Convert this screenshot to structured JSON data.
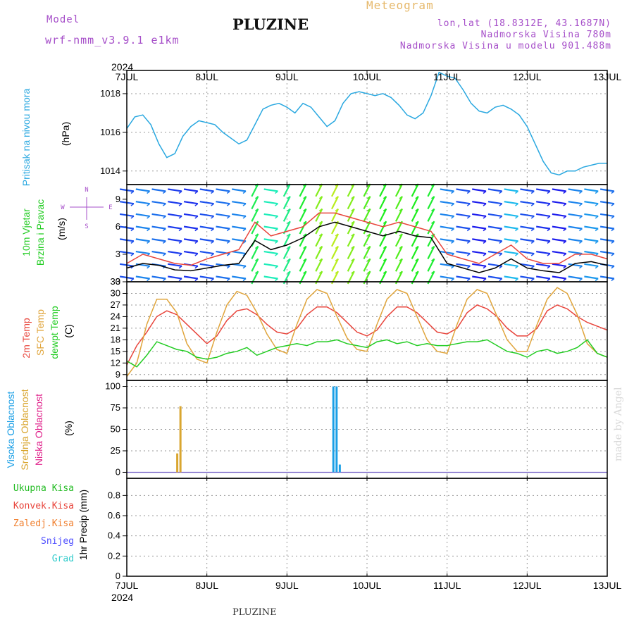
{
  "header": {
    "model_label": "Model",
    "model_run": "wrf-nmm_v3.9.1  e1km",
    "station": "PLUZINE",
    "product": "Meteogram",
    "lonlat": "lon,lat (18.8312E, 43.1687N)",
    "elevation": "Nadmorska Visina 780m",
    "model_elevation": "Nadmorska Visina u modelu 901.488m",
    "footer_station": "PLUZINE",
    "credit": "made by Angel"
  },
  "colors": {
    "pressure": "#2aa8e0",
    "temp2m": "#e8453c",
    "sfc_temp": "#e0a53c",
    "dewpt": "#22cc22",
    "high_cloud": "#1a9fe6",
    "mid_cloud": "#d9a630",
    "low_cloud": "#e0208a",
    "total_precip": "#22bb22",
    "conv_precip": "#e8453c",
    "frozen_precip": "#f08030",
    "snow": "#5050ff",
    "hail": "#33cccc"
  },
  "chart_data": [
    {
      "type": "line",
      "name": "sea-level pressure",
      "ylabel_lines": [
        "Pritisak na nivou mora",
        "(hPa)"
      ],
      "year": "2024",
      "x_ticks": [
        "7JUL",
        "8JUL",
        "9JUL",
        "10JUL",
        "11JUL",
        "12JUL",
        "13JUL"
      ],
      "xlim": [
        0,
        6
      ],
      "ylim": [
        1013.3,
        1019.2
      ],
      "y_ticks": [
        1014,
        1016,
        1018
      ],
      "x_days": [
        0,
        0.1,
        0.2,
        0.3,
        0.4,
        0.5,
        0.6,
        0.7,
        0.8,
        0.9,
        1.0,
        1.1,
        1.2,
        1.3,
        1.4,
        1.5,
        1.6,
        1.7,
        1.8,
        1.9,
        2.0,
        2.1,
        2.2,
        2.3,
        2.4,
        2.5,
        2.6,
        2.7,
        2.8,
        2.9,
        3.0,
        3.1,
        3.2,
        3.3,
        3.4,
        3.5,
        3.6,
        3.7,
        3.8,
        3.9,
        4.0,
        4.1,
        4.2,
        4.3,
        4.4,
        4.5,
        4.6,
        4.7,
        4.8,
        4.9,
        5.0,
        5.1,
        5.2,
        5.3,
        5.4,
        5.5,
        5.6,
        5.7,
        5.8,
        5.9,
        6.0
      ],
      "values": [
        1016.2,
        1016.8,
        1016.9,
        1016.4,
        1015.4,
        1014.7,
        1014.9,
        1015.8,
        1016.3,
        1016.6,
        1016.5,
        1016.4,
        1016.0,
        1015.7,
        1015.4,
        1015.6,
        1016.4,
        1017.2,
        1017.4,
        1017.5,
        1017.3,
        1017.0,
        1017.5,
        1017.3,
        1016.8,
        1016.3,
        1016.6,
        1017.5,
        1018.0,
        1018.1,
        1018.0,
        1017.9,
        1018.0,
        1017.8,
        1017.4,
        1016.9,
        1016.7,
        1017.0,
        1017.9,
        1019.1,
        1018.9,
        1018.8,
        1018.2,
        1017.5,
        1017.1,
        1017.0,
        1017.3,
        1017.4,
        1017.2,
        1016.9,
        1016.3,
        1015.4,
        1014.5,
        1013.9,
        1013.8,
        1014.0,
        1014.0,
        1014.2,
        1014.3,
        1014.4,
        1014.4
      ]
    },
    {
      "type": "line",
      "name": "10m wind",
      "ylabel_lines": [
        "10m Vjetar",
        "Brzina i Pravac",
        "(m/s)"
      ],
      "compass": [
        "N",
        "W",
        "E",
        "S"
      ],
      "ylim": [
        0,
        10.6
      ],
      "y_ticks": [
        0,
        3,
        6,
        9
      ],
      "x_days": [
        0,
        0.2,
        0.4,
        0.6,
        0.8,
        1.0,
        1.2,
        1.4,
        1.6,
        1.8,
        2.0,
        2.2,
        2.4,
        2.6,
        2.8,
        3.0,
        3.2,
        3.4,
        3.6,
        3.8,
        4.0,
        4.2,
        4.4,
        4.6,
        4.8,
        5.0,
        5.2,
        5.4,
        5.6,
        5.8,
        6.0
      ],
      "speed": [
        1.5,
        2.0,
        1.8,
        1.3,
        1.2,
        1.5,
        1.8,
        2.0,
        4.5,
        3.5,
        4.0,
        4.8,
        6.0,
        6.5,
        6.0,
        5.5,
        5.0,
        5.5,
        5.0,
        4.8,
        2.0,
        1.5,
        1.0,
        1.5,
        2.5,
        1.5,
        1.2,
        1.0,
        2.0,
        2.2,
        1.8
      ],
      "gust": [
        2.0,
        3.0,
        2.5,
        2.0,
        1.8,
        2.5,
        3.0,
        3.5,
        6.5,
        5.0,
        5.5,
        6.0,
        7.5,
        7.5,
        7.0,
        6.5,
        6.0,
        6.5,
        6.0,
        5.5,
        3.0,
        2.5,
        2.0,
        3.0,
        4.0,
        2.5,
        2.0,
        2.0,
        3.0,
        3.0,
        2.5
      ]
    },
    {
      "type": "line",
      "name": "temperature",
      "ylabel_lines": [
        "2m Temp",
        "SFC Temp",
        "dewpt Temp",
        "(C)"
      ],
      "ylim": [
        7.5,
        33
      ],
      "y_ticks": [
        9,
        12,
        15,
        18,
        21,
        24,
        27,
        30,
        33
      ],
      "x_days": [
        0,
        0.125,
        0.25,
        0.375,
        0.5,
        0.625,
        0.75,
        0.875,
        1.0,
        1.125,
        1.25,
        1.375,
        1.5,
        1.625,
        1.75,
        1.875,
        2.0,
        2.125,
        2.25,
        2.375,
        2.5,
        2.625,
        2.75,
        2.875,
        3.0,
        3.125,
        3.25,
        3.375,
        3.5,
        3.625,
        3.75,
        3.875,
        4.0,
        4.125,
        4.25,
        4.375,
        4.5,
        4.625,
        4.75,
        4.875,
        5.0,
        5.125,
        5.25,
        5.375,
        5.5,
        5.625,
        5.75,
        5.875,
        6.0
      ],
      "series": [
        {
          "name": "2m Temp",
          "values": [
            11.5,
            16.5,
            20.0,
            24.0,
            25.5,
            24.5,
            22.0,
            19.5,
            17.0,
            19.0,
            23.0,
            25.5,
            26.0,
            24.5,
            22.0,
            20.0,
            19.5,
            21.0,
            24.5,
            26.5,
            26.5,
            25.0,
            22.5,
            20.0,
            19.0,
            20.5,
            24.0,
            26.5,
            26.5,
            25.0,
            22.5,
            20.0,
            19.5,
            21.0,
            25.0,
            27.0,
            26.0,
            24.0,
            21.0,
            19.0,
            19.0,
            21.0,
            25.5,
            27.0,
            26.0,
            24.0,
            22.5,
            21.5,
            20.5
          ]
        },
        {
          "name": "SFC Temp",
          "values": [
            8.5,
            12.0,
            22.0,
            28.5,
            28.5,
            25.0,
            17.0,
            13.0,
            12.0,
            20.0,
            27.0,
            30.5,
            29.5,
            25.0,
            19.5,
            15.5,
            14.5,
            22.0,
            28.5,
            31.0,
            30.0,
            24.0,
            18.5,
            15.5,
            15.0,
            22.0,
            28.5,
            31.0,
            30.0,
            24.0,
            18.0,
            15.0,
            14.5,
            22.0,
            28.5,
            31.0,
            30.0,
            24.0,
            18.0,
            15.0,
            15.0,
            22.0,
            28.5,
            31.5,
            30.0,
            24.5,
            17.0,
            14.5,
            13.5
          ]
        },
        {
          "name": "dewpt Temp",
          "values": [
            12.5,
            11.0,
            14.0,
            17.5,
            16.5,
            15.5,
            15.0,
            13.5,
            13.0,
            13.5,
            14.5,
            15.0,
            16.0,
            14.0,
            15.0,
            16.0,
            16.5,
            17.0,
            16.5,
            17.5,
            17.5,
            18.0,
            17.0,
            16.5,
            16.0,
            17.5,
            18.0,
            17.0,
            17.5,
            16.5,
            17.0,
            16.5,
            16.5,
            17.0,
            17.5,
            17.5,
            18.0,
            16.5,
            15.0,
            14.5,
            13.5,
            15.0,
            15.5,
            14.5,
            15.0,
            16.0,
            18.0,
            14.5,
            13.5
          ]
        }
      ]
    },
    {
      "type": "bar",
      "name": "cloud cover",
      "ylabel_lines": [
        "Visoka Oblacnost",
        "Srednja Oblacnost",
        "Niska Oblacnost",
        "(%)"
      ],
      "ylim": [
        -7,
        107
      ],
      "y_ticks": [
        0,
        25,
        50,
        75,
        100
      ],
      "series": [
        {
          "name": "Srednja Oblacnost",
          "x_days": [
            0.63,
            0.67
          ],
          "values": [
            22,
            77
          ]
        },
        {
          "name": "Visoka Oblacnost",
          "x_days": [
            2.58,
            2.62,
            2.66
          ],
          "values": [
            100,
            100,
            9
          ]
        }
      ]
    },
    {
      "type": "bar",
      "name": "precipitation",
      "ylabel_lines": [
        "1hr Precip (mm)"
      ],
      "legend": [
        "Ukupna Kisa",
        "Konvek.Kisa",
        "Zaledj.Kisa",
        "Snijeg",
        "Grad"
      ],
      "ylim": [
        0,
        0.97
      ],
      "y_ticks": [
        0,
        0.2,
        0.4,
        0.6,
        0.8
      ],
      "y_tick_labels": [
        "0",
        "0.2",
        "0.4",
        "0.6",
        "0.8"
      ],
      "x_ticks": [
        "7JUL",
        "8JUL",
        "9JUL",
        "10JUL",
        "11JUL",
        "12JUL",
        "13JUL"
      ],
      "year": "2024",
      "values": []
    }
  ]
}
